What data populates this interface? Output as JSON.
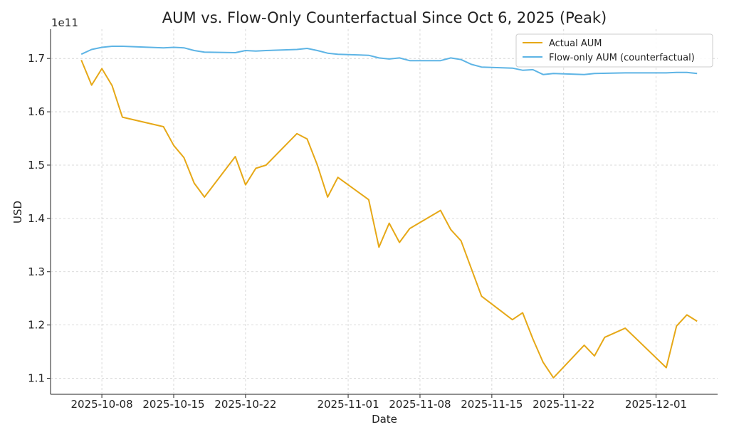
{
  "chart_data": {
    "type": "line",
    "title": "AUM vs. Flow-Only Counterfactual Since Oct 6, 2025 (Peak)",
    "xlabel": "Date",
    "ylabel": "USD",
    "y_offset_label": "1e11",
    "y_scale": 100000000000.0,
    "ylim": [
      1.07,
      1.755
    ],
    "y_ticks": [
      1.1,
      1.2,
      1.3,
      1.4,
      1.5,
      1.6,
      1.7
    ],
    "y_tick_labels": [
      "1.1",
      "1.2",
      "1.3",
      "1.4",
      "1.5",
      "1.6",
      "1.7"
    ],
    "xlim": [
      "2025-10-03",
      "2025-12-07"
    ],
    "x_ticks": [
      "2025-10-08",
      "2025-10-15",
      "2025-10-22",
      "2025-11-01",
      "2025-11-08",
      "2025-11-15",
      "2025-11-22",
      "2025-12-01"
    ],
    "x_tick_labels": [
      "2025-10-08",
      "2025-10-15",
      "2025-10-22",
      "2025-11-01",
      "2025-11-08",
      "2025-11-15",
      "2025-11-22",
      "2025-12-01"
    ],
    "grid": true,
    "legend_position": "top-right",
    "series": [
      {
        "name": "Actual AUM",
        "color": "#E6A817",
        "points": [
          [
            "2025-10-06",
            1.697
          ],
          [
            "2025-10-07",
            1.65
          ],
          [
            "2025-10-08",
            1.681
          ],
          [
            "2025-10-09",
            1.649
          ],
          [
            "2025-10-10",
            1.59
          ],
          [
            "2025-10-14",
            1.572
          ],
          [
            "2025-10-15",
            1.537
          ],
          [
            "2025-10-16",
            1.514
          ],
          [
            "2025-10-17",
            1.466
          ],
          [
            "2025-10-18",
            1.44
          ],
          [
            "2025-10-21",
            1.516
          ],
          [
            "2025-10-22",
            1.463
          ],
          [
            "2025-10-23",
            1.494
          ],
          [
            "2025-10-24",
            1.5
          ],
          [
            "2025-10-27",
            1.559
          ],
          [
            "2025-10-28",
            1.549
          ],
          [
            "2025-10-29",
            1.5
          ],
          [
            "2025-10-30",
            1.44
          ],
          [
            "2025-10-31",
            1.477
          ],
          [
            "2025-11-03",
            1.435
          ],
          [
            "2025-11-04",
            1.346
          ],
          [
            "2025-11-05",
            1.391
          ],
          [
            "2025-11-06",
            1.355
          ],
          [
            "2025-11-07",
            1.381
          ],
          [
            "2025-11-10",
            1.415
          ],
          [
            "2025-11-11",
            1.379
          ],
          [
            "2025-11-12",
            1.358
          ],
          [
            "2025-11-14",
            1.254
          ],
          [
            "2025-11-17",
            1.21
          ],
          [
            "2025-11-18",
            1.223
          ],
          [
            "2025-11-19",
            1.174
          ],
          [
            "2025-11-20",
            1.13
          ],
          [
            "2025-11-21",
            1.101
          ],
          [
            "2025-11-24",
            1.162
          ],
          [
            "2025-11-25",
            1.142
          ],
          [
            "2025-11-26",
            1.177
          ],
          [
            "2025-11-28",
            1.194
          ],
          [
            "2025-12-02",
            1.12
          ],
          [
            "2025-12-03",
            1.198
          ],
          [
            "2025-12-04",
            1.219
          ],
          [
            "2025-12-05",
            1.207
          ]
        ]
      },
      {
        "name": "Flow-only AUM (counterfactual)",
        "color": "#5DB4E5",
        "points": [
          [
            "2025-10-06",
            1.708
          ],
          [
            "2025-10-07",
            1.717
          ],
          [
            "2025-10-08",
            1.721
          ],
          [
            "2025-10-09",
            1.723
          ],
          [
            "2025-10-10",
            1.723
          ],
          [
            "2025-10-14",
            1.72
          ],
          [
            "2025-10-15",
            1.721
          ],
          [
            "2025-10-16",
            1.72
          ],
          [
            "2025-10-17",
            1.715
          ],
          [
            "2025-10-18",
            1.712
          ],
          [
            "2025-10-21",
            1.711
          ],
          [
            "2025-10-22",
            1.715
          ],
          [
            "2025-10-23",
            1.714
          ],
          [
            "2025-10-24",
            1.715
          ],
          [
            "2025-10-27",
            1.717
          ],
          [
            "2025-10-28",
            1.719
          ],
          [
            "2025-10-29",
            1.715
          ],
          [
            "2025-10-30",
            1.71
          ],
          [
            "2025-10-31",
            1.708
          ],
          [
            "2025-11-03",
            1.706
          ],
          [
            "2025-11-04",
            1.701
          ],
          [
            "2025-11-05",
            1.699
          ],
          [
            "2025-11-06",
            1.701
          ],
          [
            "2025-11-07",
            1.696
          ],
          [
            "2025-11-10",
            1.696
          ],
          [
            "2025-11-11",
            1.701
          ],
          [
            "2025-11-12",
            1.698
          ],
          [
            "2025-11-13",
            1.689
          ],
          [
            "2025-11-14",
            1.684
          ],
          [
            "2025-11-17",
            1.682
          ],
          [
            "2025-11-18",
            1.678
          ],
          [
            "2025-11-19",
            1.679
          ],
          [
            "2025-11-20",
            1.67
          ],
          [
            "2025-11-21",
            1.672
          ],
          [
            "2025-11-24",
            1.67
          ],
          [
            "2025-11-25",
            1.672
          ],
          [
            "2025-11-28",
            1.673
          ],
          [
            "2025-12-02",
            1.673
          ],
          [
            "2025-12-03",
            1.674
          ],
          [
            "2025-12-04",
            1.674
          ],
          [
            "2025-12-05",
            1.672
          ]
        ]
      }
    ]
  }
}
